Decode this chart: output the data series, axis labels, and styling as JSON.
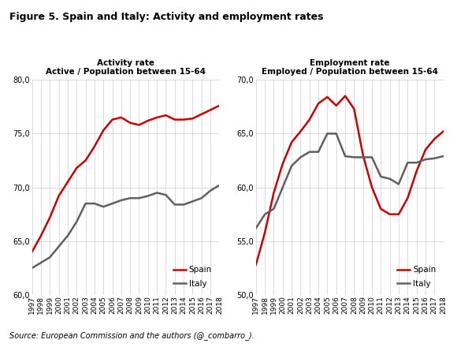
{
  "title": "Figure 5. Spain and Italy: Activity and employment rates",
  "source": "Source: European Commission and the authors (@_combarro_).",
  "years": [
    1997,
    1998,
    1999,
    2000,
    2001,
    2002,
    2003,
    2004,
    2005,
    2006,
    2007,
    2008,
    2009,
    2010,
    2011,
    2012,
    2013,
    2014,
    2015,
    2016,
    2017,
    2018
  ],
  "activity_spain": [
    64.0,
    65.5,
    67.2,
    69.2,
    70.5,
    71.8,
    72.5,
    73.8,
    75.3,
    76.3,
    76.5,
    76.0,
    75.8,
    76.2,
    76.5,
    76.7,
    76.3,
    76.3,
    76.4,
    76.8,
    77.2,
    77.6
  ],
  "activity_italy": [
    62.5,
    63.0,
    63.5,
    64.5,
    65.5,
    66.8,
    68.5,
    68.5,
    68.2,
    68.5,
    68.8,
    69.0,
    69.0,
    69.2,
    69.5,
    69.3,
    68.4,
    68.4,
    68.7,
    69.0,
    69.7,
    70.2
  ],
  "employment_spain": [
    52.8,
    55.8,
    59.5,
    62.2,
    64.2,
    65.2,
    66.3,
    67.8,
    68.4,
    67.6,
    68.5,
    67.3,
    63.0,
    60.0,
    58.0,
    57.5,
    57.5,
    59.0,
    61.5,
    63.5,
    64.5,
    65.2
  ],
  "employment_italy": [
    56.2,
    57.5,
    58.0,
    60.0,
    62.0,
    62.8,
    63.3,
    63.3,
    65.0,
    65.0,
    62.9,
    62.8,
    62.8,
    62.8,
    61.0,
    60.8,
    60.3,
    62.3,
    62.3,
    62.6,
    62.7,
    62.9
  ],
  "left_title1": "Activity rate",
  "left_title2": "Active / Population between 15-64",
  "right_title1": "Employment rate",
  "right_title2": "Employed / Population between 15-64",
  "spain_color": "#cc0000",
  "italy_color": "#606060",
  "activity_ylim": [
    60.0,
    80.0
  ],
  "activity_yticks": [
    60.0,
    65.0,
    70.0,
    75.0,
    80.0
  ],
  "employment_ylim": [
    50.0,
    70.0
  ],
  "employment_yticks": [
    50.0,
    55.0,
    60.0,
    65.0,
    70.0
  ],
  "line_width": 1.8,
  "title_fontsize": 9,
  "subtitle_fontsize": 7.5,
  "tick_fontsize": 6.5,
  "ytick_fontsize": 7,
  "legend_fontsize": 7.5,
  "source_fontsize": 7
}
